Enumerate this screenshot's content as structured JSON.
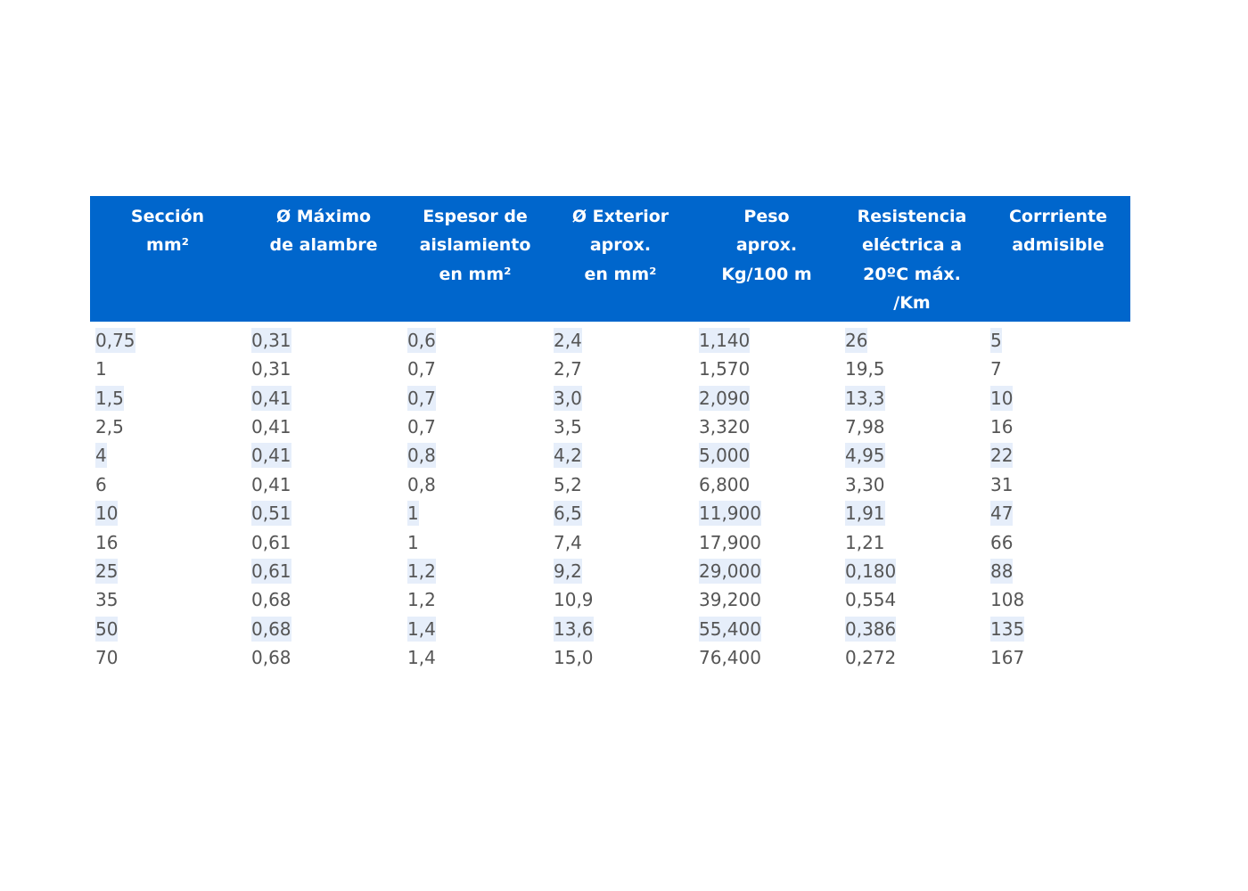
{
  "table": {
    "headers": [
      [
        "Sección",
        "mm²"
      ],
      [
        "Ø Máximo",
        "de alambre"
      ],
      [
        "Espesor de",
        "aislamiento",
        "en mm²"
      ],
      [
        "Ø Exterior",
        "aprox.",
        "en mm²"
      ],
      [
        "Peso",
        "aprox.",
        "Kg/100 m"
      ],
      [
        "Resistencia",
        "eléctrica a",
        "20ºC máx.",
        "/Km"
      ],
      [
        "Corrriente",
        "admisible"
      ]
    ],
    "rows": [
      [
        "0,75",
        "0,31",
        "0,6",
        "2,4",
        "1,140",
        "26",
        "5"
      ],
      [
        "1",
        "0,31",
        "0,7",
        "2,7",
        "1,570",
        "19,5",
        "7"
      ],
      [
        "1,5",
        "0,41",
        "0,7",
        "3,0",
        "2,090",
        "13,3",
        "10"
      ],
      [
        "2,5",
        "0,41",
        "0,7",
        "3,5",
        "3,320",
        "7,98",
        "16"
      ],
      [
        "4",
        "0,41",
        "0,8",
        "4,2",
        "5,000",
        "4,95",
        "22"
      ],
      [
        "6",
        "0,41",
        "0,8",
        "5,2",
        "6,800",
        "3,30",
        "31"
      ],
      [
        "10",
        "0,51",
        "1",
        "6,5",
        "11,900",
        "1,91",
        "47"
      ],
      [
        "16",
        "0,61",
        "1",
        "7,4",
        "17,900",
        "1,21",
        "66"
      ],
      [
        "25",
        "0,61",
        "1,2",
        "9,2",
        "29,000",
        "0,180",
        "88"
      ],
      [
        "35",
        "0,68",
        "1,2",
        "10,9",
        "39,200",
        "0,554",
        "108"
      ],
      [
        "50",
        "0,68",
        "1,4",
        "13,6",
        "55,400",
        "0,386",
        "135"
      ],
      [
        "70",
        "0,68",
        "1,4",
        "15,0",
        "76,400",
        "0,272",
        "167"
      ]
    ]
  }
}
